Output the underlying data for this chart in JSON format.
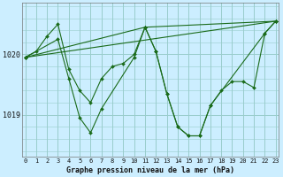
{
  "bg_color": "#cceeff",
  "grid_color": "#99cccc",
  "line_color": "#1a6b1a",
  "title": "Graphe pression niveau de la mer (hPa)",
  "xlim": [
    -0.3,
    23.3
  ],
  "ylim": [
    1018.3,
    1020.85
  ],
  "yticks": [
    1019,
    1020
  ],
  "xticks": [
    0,
    1,
    2,
    3,
    4,
    5,
    6,
    7,
    8,
    9,
    10,
    11,
    12,
    13,
    14,
    15,
    16,
    17,
    18,
    19,
    20,
    21,
    22,
    23
  ],
  "series": [
    {
      "x": [
        0,
        1,
        2,
        3,
        4,
        5,
        6,
        7,
        8,
        9,
        10,
        11,
        12,
        13,
        14,
        15,
        16,
        17,
        18,
        19,
        20,
        21,
        22,
        23
      ],
      "y": [
        1019.95,
        1020.05,
        1020.3,
        1020.5,
        1019.75,
        1019.4,
        1019.2,
        1019.6,
        1019.8,
        1019.85,
        1020.0,
        1020.45,
        1020.05,
        1019.35,
        1018.8,
        1018.65,
        1018.65,
        1019.15,
        1019.4,
        1019.55,
        1019.55,
        1019.45,
        1020.35,
        1020.55
      ]
    },
    {
      "x": [
        0,
        3,
        4,
        5,
        6,
        7,
        10,
        11,
        12,
        13,
        14,
        15,
        16,
        17,
        22,
        23
      ],
      "y": [
        1019.95,
        1020.25,
        1019.6,
        1018.95,
        1018.7,
        1019.1,
        1019.95,
        1020.45,
        1020.05,
        1019.35,
        1018.8,
        1018.65,
        1018.65,
        1019.15,
        1020.35,
        1020.55
      ]
    },
    {
      "x": [
        0,
        23
      ],
      "y": [
        1019.95,
        1020.55
      ]
    },
    {
      "x": [
        0,
        11,
        23
      ],
      "y": [
        1019.95,
        1020.45,
        1020.55
      ]
    }
  ]
}
